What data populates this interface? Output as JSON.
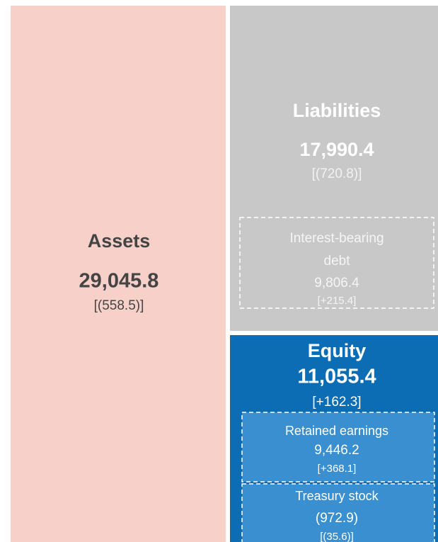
{
  "assets": {
    "title": "Assets",
    "amount": "29,045.8",
    "change": "[(558.5)]"
  },
  "liabilities": {
    "title": "Liabilities",
    "amount": "17,990.4",
    "change": "[(720.8)]",
    "items": [
      {
        "label_lines": [
          "Interest-bearing",
          "debt"
        ],
        "amount": "9,806.4",
        "change": "[+215.4]"
      }
    ]
  },
  "equity": {
    "title": "Equity",
    "amount": "11,055.4",
    "change": "[+162.3]",
    "items": [
      {
        "label_lines": [
          "Retained earnings"
        ],
        "amount": "9,446.2",
        "change": "[+368.1]"
      },
      {
        "label_lines": [
          "Treasury stock"
        ],
        "amount": "(972.9)",
        "change": "[(35.6)]"
      }
    ]
  }
}
